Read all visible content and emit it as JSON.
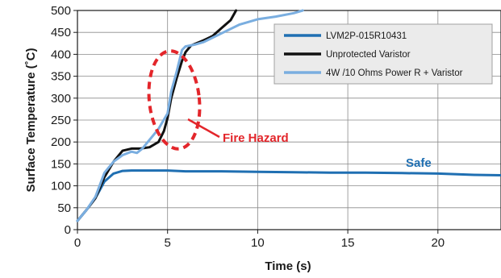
{
  "chart_data": {
    "type": "line",
    "xlabel": "Time (s)",
    "ylabel": "Surface Temperature (˚C)",
    "xlim": [
      0,
      23.5
    ],
    "ylim": [
      0,
      500
    ],
    "x_ticks": [
      0,
      5,
      10,
      15,
      20
    ],
    "y_ticks": [
      0,
      50,
      100,
      150,
      200,
      250,
      300,
      350,
      400,
      450,
      500
    ],
    "grid": true,
    "legend_position": "top-right",
    "series": [
      {
        "name": "LVM2P-015R10431",
        "color": "#1f6fb2",
        "x": [
          0,
          0.5,
          1.0,
          1.5,
          2.0,
          2.5,
          3.0,
          4.0,
          5.0,
          6.0,
          8.0,
          10.0,
          12.0,
          14.0,
          16.0,
          18.0,
          20.0,
          22.0,
          23.5
        ],
        "y": [
          20,
          45,
          72,
          110,
          128,
          134,
          135,
          135,
          135,
          133,
          133,
          132,
          131,
          130,
          130,
          129,
          128,
          125,
          124
        ]
      },
      {
        "name": "Unprotected Varistor",
        "color": "#111111",
        "x": [
          0,
          0.5,
          1.0,
          1.5,
          2.0,
          2.5,
          3.0,
          3.5,
          4.0,
          4.5,
          4.8,
          5.0,
          5.2,
          5.5,
          5.8,
          6.0,
          6.3,
          6.6,
          7.0,
          7.5,
          8.0,
          8.5,
          8.8
        ],
        "y": [
          20,
          45,
          72,
          120,
          155,
          180,
          185,
          185,
          188,
          200,
          225,
          255,
          300,
          345,
          385,
          405,
          420,
          425,
          432,
          442,
          460,
          478,
          500
        ]
      },
      {
        "name": "4W /10 Ohms Power R + Varistor",
        "color": "#7aaee0",
        "x": [
          0,
          0.5,
          1.0,
          1.5,
          2.0,
          2.5,
          3.0,
          3.3,
          3.6,
          4.0,
          4.5,
          5.0,
          5.2,
          5.5,
          5.8,
          6.0,
          6.5,
          7.0,
          8.0,
          9.0,
          10.0,
          11.0,
          12.0,
          12.5
        ],
        "y": [
          20,
          45,
          75,
          130,
          155,
          170,
          178,
          175,
          185,
          205,
          230,
          265,
          315,
          360,
          410,
          418,
          422,
          428,
          448,
          468,
          480,
          486,
          494,
          500
        ]
      }
    ],
    "annotations": [
      {
        "text": "Fire Hazard",
        "color": "#e3262b"
      },
      {
        "text": "Safe",
        "color": "#1f6fb2"
      }
    ]
  }
}
